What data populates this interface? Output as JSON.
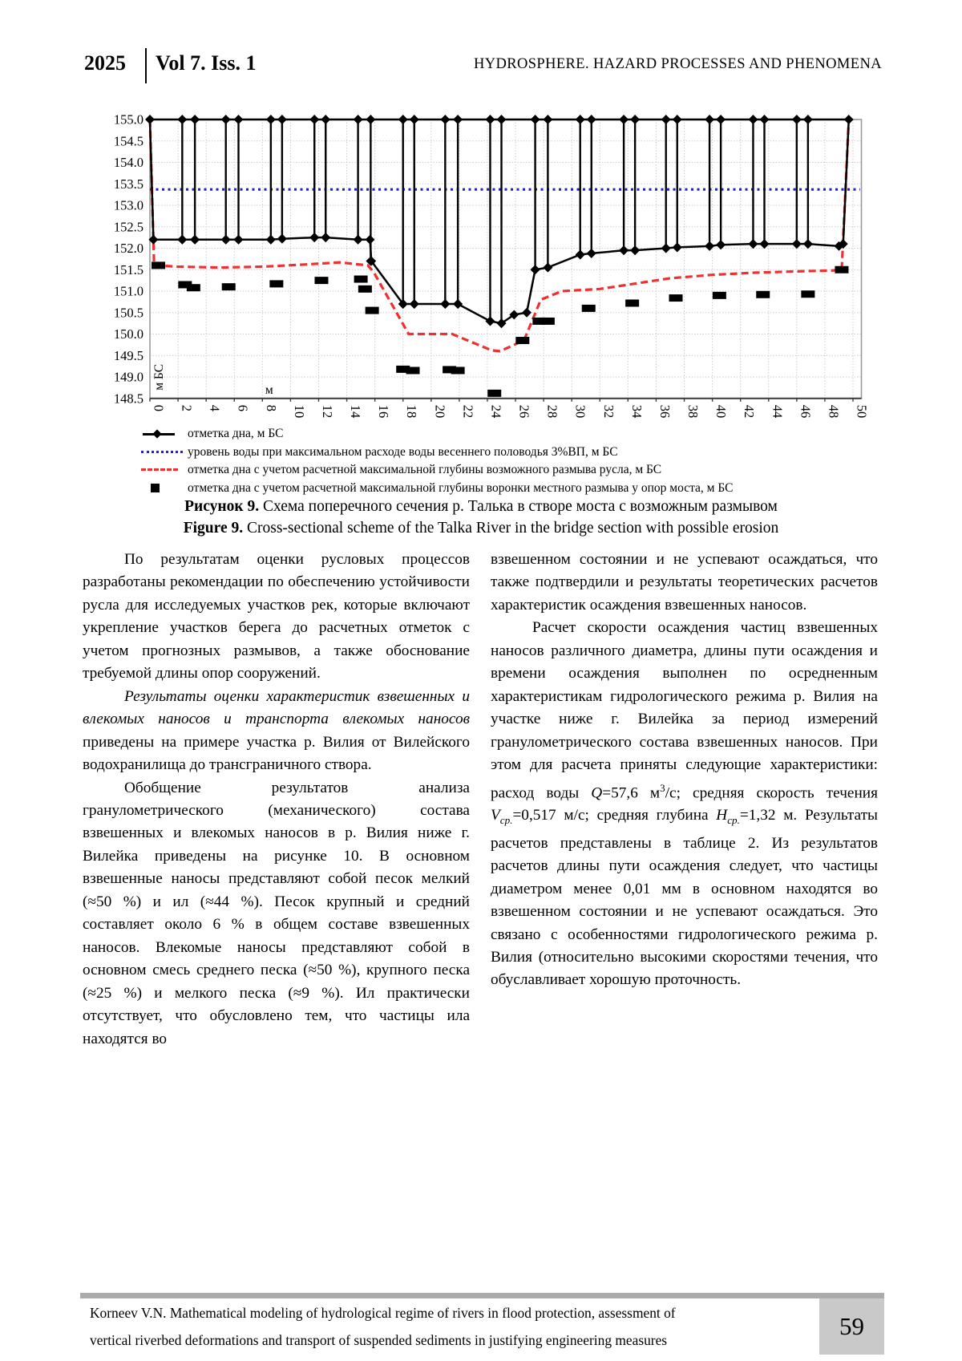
{
  "header": {
    "year": "2025",
    "volume": "Vol 7. Iss. 1",
    "journal": "HYDROSPHERE. HAZARD PROCESSES AND PHENOMENA"
  },
  "chart_data": {
    "type": "line",
    "title": "",
    "xlabel": "м",
    "ylabel": "м БС",
    "xlim": [
      0,
      50.6
    ],
    "ylim": [
      148.5,
      155.0
    ],
    "grid": true,
    "legend_position": "bottom",
    "x_ticks": [
      0,
      2,
      4,
      6,
      8,
      10,
      12,
      14,
      16,
      18,
      20,
      22,
      24,
      26,
      28,
      30,
      32,
      34,
      36,
      38,
      40,
      42,
      44,
      46,
      48,
      50
    ],
    "y_ticks": [
      "155.0",
      "154.5",
      "154.0",
      "153.5",
      "153.0",
      "152.5",
      "152.0",
      "151.5",
      "151.0",
      "150.5",
      "150.0",
      "149.5",
      "149.0",
      "148.5"
    ],
    "water_level": 153.37,
    "deck_level": 155.0,
    "bank_right_x": 49.7,
    "series": {
      "bed": {
        "label": "отметка дна, м БС",
        "color": "#000000",
        "style": "solid-diamond",
        "points": [
          [
            0,
            155
          ],
          [
            0.25,
            152.2
          ],
          [
            2.3,
            152.2
          ],
          [
            3.2,
            152.2
          ],
          [
            5.4,
            152.2
          ],
          [
            6.3,
            152.2
          ],
          [
            8.6,
            152.2
          ],
          [
            9.4,
            152.22
          ],
          [
            11.7,
            152.25
          ],
          [
            12.5,
            152.25
          ],
          [
            14.8,
            152.2
          ],
          [
            15.65,
            152.2
          ],
          [
            15.75,
            151.7
          ],
          [
            18.0,
            150.7
          ],
          [
            18.8,
            150.7
          ],
          [
            21.0,
            150.7
          ],
          [
            21.9,
            150.7
          ],
          [
            24.2,
            150.3
          ],
          [
            25.0,
            150.25
          ],
          [
            25.9,
            150.45
          ],
          [
            26.8,
            150.5
          ],
          [
            27.4,
            151.5
          ],
          [
            28.3,
            151.55
          ],
          [
            30.6,
            151.85
          ],
          [
            31.4,
            151.88
          ],
          [
            33.7,
            151.95
          ],
          [
            34.5,
            151.95
          ],
          [
            36.7,
            152.0
          ],
          [
            37.5,
            152.02
          ],
          [
            39.8,
            152.05
          ],
          [
            40.6,
            152.08
          ],
          [
            42.9,
            152.1
          ],
          [
            43.7,
            152.1
          ],
          [
            46.0,
            152.1
          ],
          [
            46.8,
            152.1
          ],
          [
            49.0,
            152.05
          ],
          [
            49.3,
            152.1
          ],
          [
            49.7,
            155
          ]
        ]
      },
      "water": {
        "label": "уровень воды при максимальном расходе воды весеннего половодья 3%ВП, м БС",
        "color": "#2121cf",
        "style": "dotted",
        "points": [
          [
            0,
            153.37
          ],
          [
            50.5,
            153.37
          ]
        ]
      },
      "scour_bed": {
        "label": "отметка дна с учетом расчетной максимальной глубины возможного размыва русла, м БС",
        "color": "#ee3030",
        "style": "dashed",
        "points": [
          [
            0,
            155
          ],
          [
            0.3,
            151.6
          ],
          [
            2,
            151.57
          ],
          [
            5,
            151.55
          ],
          [
            8,
            151.57
          ],
          [
            11,
            151.62
          ],
          [
            13.5,
            151.67
          ],
          [
            15.5,
            151.6
          ],
          [
            15.9,
            151.45
          ],
          [
            18.4,
            150.0
          ],
          [
            21.5,
            150.0
          ],
          [
            24.3,
            149.62
          ],
          [
            24.9,
            149.6
          ],
          [
            26.6,
            149.85
          ],
          [
            27.8,
            150.8
          ],
          [
            29.3,
            151.0
          ],
          [
            32,
            151.05
          ],
          [
            34,
            151.15
          ],
          [
            37,
            151.3
          ],
          [
            40,
            151.38
          ],
          [
            43,
            151.43
          ],
          [
            46,
            151.46
          ],
          [
            48.5,
            151.48
          ],
          [
            49.2,
            151.5
          ],
          [
            49.7,
            155
          ]
        ]
      },
      "scour_piers": {
        "label": "отметка дна с учетом расчетной максимальной глубины воронки местного размыва у опор моста, м БС",
        "color": "#000000",
        "style": "squares",
        "points": [
          [
            0.6,
            151.6
          ],
          [
            2.5,
            151.15
          ],
          [
            3.1,
            151.08
          ],
          [
            5.6,
            151.1
          ],
          [
            9.0,
            151.17
          ],
          [
            12.2,
            151.25
          ],
          [
            15.0,
            151.28
          ],
          [
            15.3,
            151.05
          ],
          [
            15.8,
            150.55
          ],
          [
            18.0,
            149.18
          ],
          [
            18.7,
            149.15
          ],
          [
            21.3,
            149.17
          ],
          [
            21.9,
            149.15
          ],
          [
            24.5,
            148.62
          ],
          [
            26.5,
            149.85
          ],
          [
            27.7,
            150.3
          ],
          [
            28.3,
            150.3
          ],
          [
            31.2,
            150.6
          ],
          [
            34.3,
            150.72
          ],
          [
            37.4,
            150.84
          ],
          [
            40.5,
            150.9
          ],
          [
            43.6,
            150.92
          ],
          [
            46.8,
            150.93
          ],
          [
            49.2,
            151.5
          ]
        ]
      }
    },
    "piers": [
      [
        2.3,
        152.2,
        3.2,
        152.2
      ],
      [
        5.4,
        152.2,
        6.3,
        152.2
      ],
      [
        8.6,
        152.2,
        9.4,
        152.22
      ],
      [
        11.7,
        152.25,
        12.5,
        152.25
      ],
      [
        14.8,
        152.2,
        15.7,
        151.7
      ],
      [
        18.0,
        150.7,
        18.8,
        150.7
      ],
      [
        21.0,
        150.7,
        21.9,
        150.7
      ],
      [
        24.2,
        150.3,
        25.0,
        150.25
      ],
      [
        27.4,
        151.5,
        28.3,
        151.55
      ],
      [
        30.6,
        151.85,
        31.4,
        151.88
      ],
      [
        33.7,
        151.95,
        34.5,
        151.95
      ],
      [
        36.7,
        152.0,
        37.5,
        152.02
      ],
      [
        39.8,
        152.05,
        40.6,
        152.08
      ],
      [
        42.9,
        152.1,
        43.7,
        152.1
      ],
      [
        46.0,
        152.1,
        46.8,
        152.1
      ]
    ]
  },
  "captions": {
    "ru_label": "Рисунок 9.",
    "ru_text": " Схема поперечного сечения р. Талька в створе моста с возможным размывом",
    "en_label": "Figure 9.",
    "en_text": " Cross-sectional scheme of the Talka River in the bridge section with possible erosion"
  },
  "body": {
    "left": {
      "p1": "По результатам оценки русловых процессов разработаны рекомендации по обеспечению устойчивости русла для исследуемых участков рек, которые включают укрепление участков берега до расчетных отметок с учетом прогнозных размывов, а также обоснование требуемой длины опор сооружений.",
      "p2_italic": "Результаты оценки характеристик взвешенных и влекомых наносов и транспорта влекомых наносов",
      "p2_rest": " приведены на примере участка р. Вилия от Вилейского водохранилища до трансграничного створа.",
      "p3": "Обобщение результатов анализа гранулометрического (механического) состава взвешенных и влекомых наносов в р. Вилия ниже г. Вилейка приведены на рисунке 10. В основном взвешенные наносы представляют собой песок мелкий (≈50 %) и ил (≈44 %). Песок крупный и средний составляет около 6 % в общем составе взвешенных наносов. Влекомые наносы представляют собой в основном смесь среднего песка (≈50 %), крупного песка (≈25 %) и мелкого песка (≈9 %). Ил практически отсутствует, что обусловлено тем, что частицы ила находятся во"
    },
    "right": {
      "p1": "взвешенном состоянии и не успевают осаждаться, что также подтвердили и результаты теоретических расчетов характеристик осаждения взвешенных наносов.",
      "p2_a": "Расчет скорости осаждения частиц взвешенных наносов различного диаметра, длины пути осаждения и времени осаждения выполнен по осредненным характеристикам гидрологического режима р. Вилия на участке ниже г. Вилейка за период измерений гранулометрического состава взвешенных наносов. При этом для расчета приняты следующие характеристики: расход воды ",
      "q_var": "Q",
      "q_val": "=57,6 м",
      "q_sup": "3",
      "q_tail": "/с; средняя скорость течения ",
      "v_var": "V",
      "v_sub": "ср.",
      "v_tail": "=0,517 м/с; средняя глубина ",
      "h_var": "H",
      "h_sub": "ср.",
      "h_tail": "=1,32 м. ",
      "p2_b": "Результаты расчетов представлены в таблице 2. Из результатов расчетов длины пути осаждения следует, что частицы диаметром менее 0,01 мм в основном находятся во взвешенном состоянии и не успевают осаждаться. Это связано с особенностями гидрологического режима р. Вилия (относительно высокими скоростями течения, что обуславливает хорошую проточность."
    }
  },
  "footer": {
    "line1": "Korneev V.N. Mathematical modeling of hydrological regime of rivers in flood protection, assessment of",
    "line2": "vertical riverbed deformations and transport of suspended sediments in justifying engineering measures",
    "page_number": "59"
  }
}
